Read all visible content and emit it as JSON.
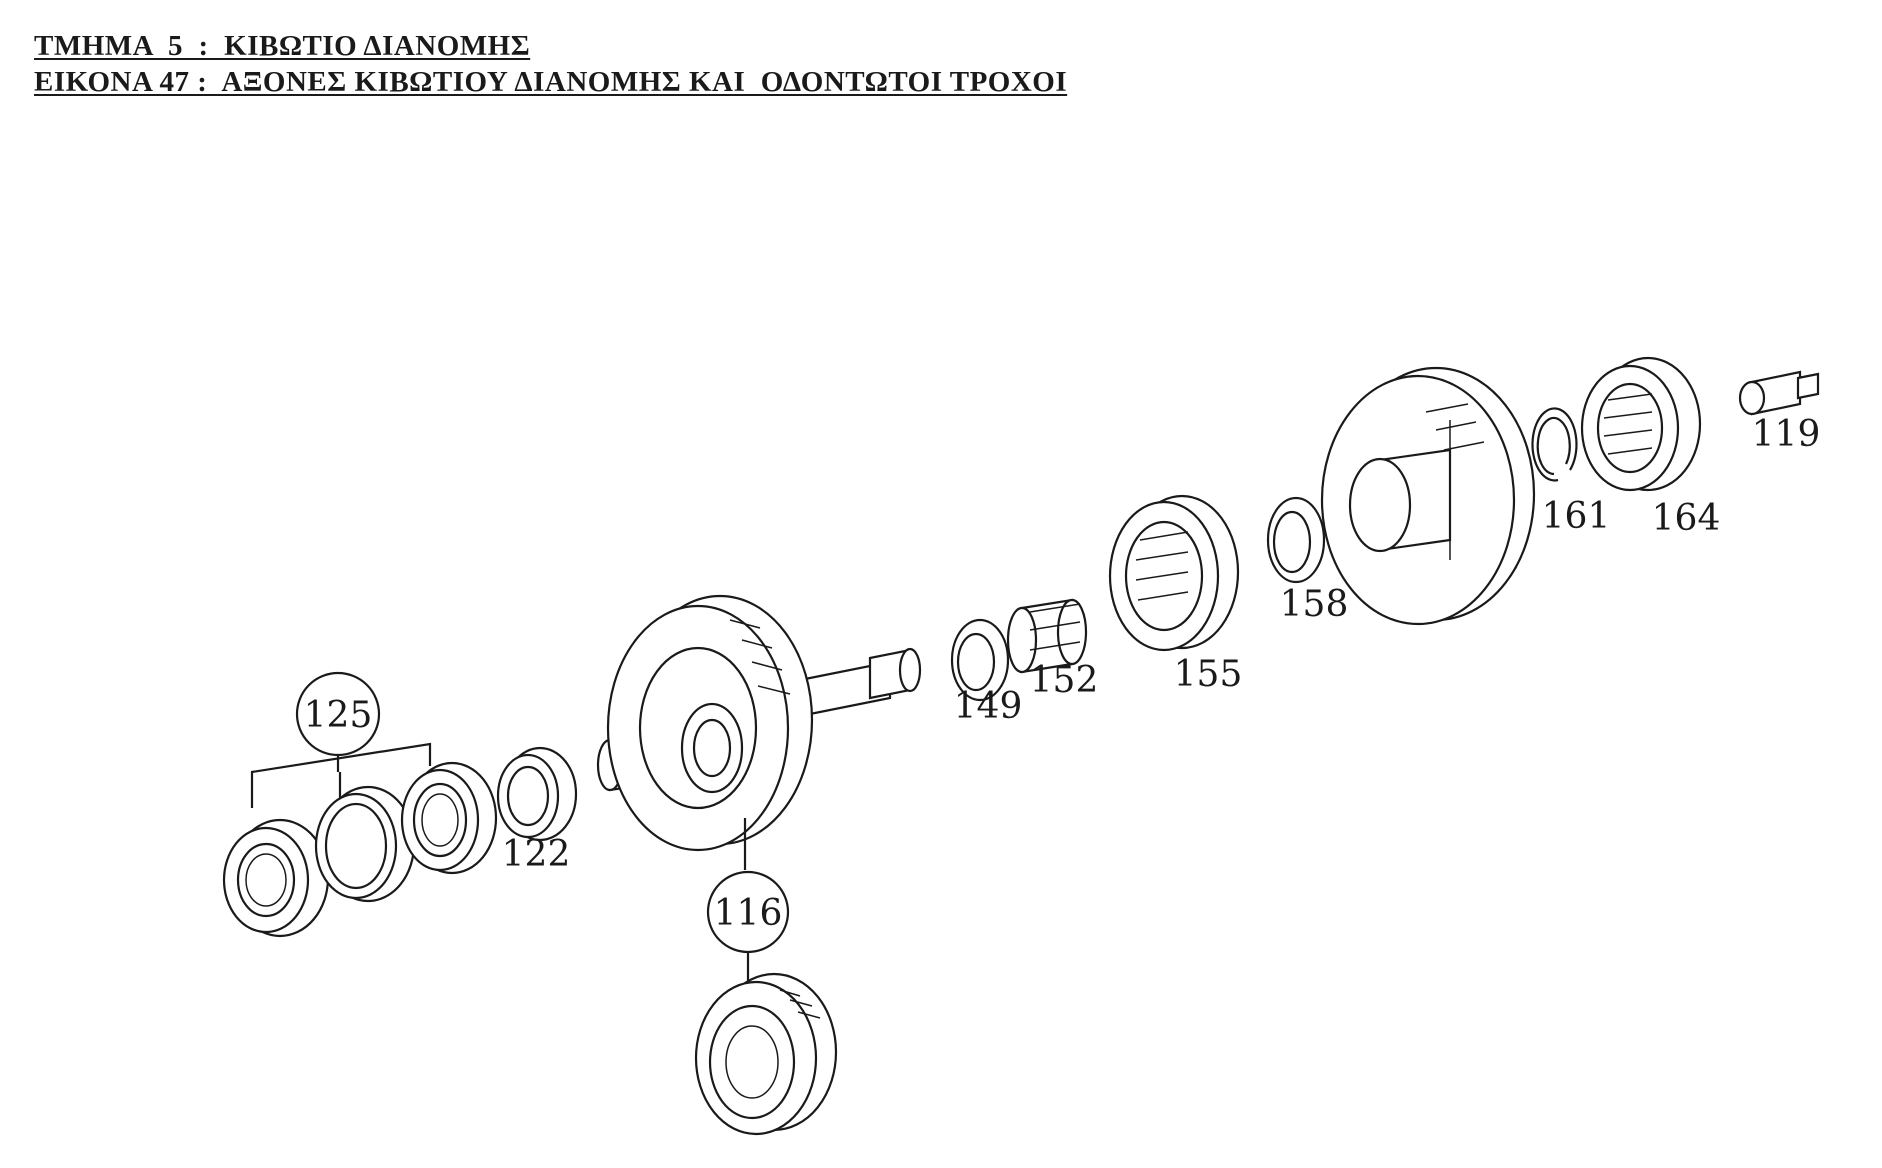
{
  "header": {
    "section_title": "ΤΜΗΜΑ  5  :  ΚΙΒΩΤΙΟ ΔΙΑΝΟΜΗΣ",
    "figure_title": "ΕΙΚΟΝΑ 47 :  ΑΞΟΝΕΣ ΚΙΒΩΤΙΟΥ ΔΙΑΝΟΜΗΣ ΚΑΙ  ΟΔΟΝΤΩΤΟΙ ΤΡΟΧΟΙ"
  },
  "parts": {
    "p125": "125",
    "p122": "122",
    "p116": "116",
    "p149": "149",
    "p152": "152",
    "p155": "155",
    "p158": "158",
    "p161": "161",
    "p164": "164",
    "p119": "119"
  }
}
